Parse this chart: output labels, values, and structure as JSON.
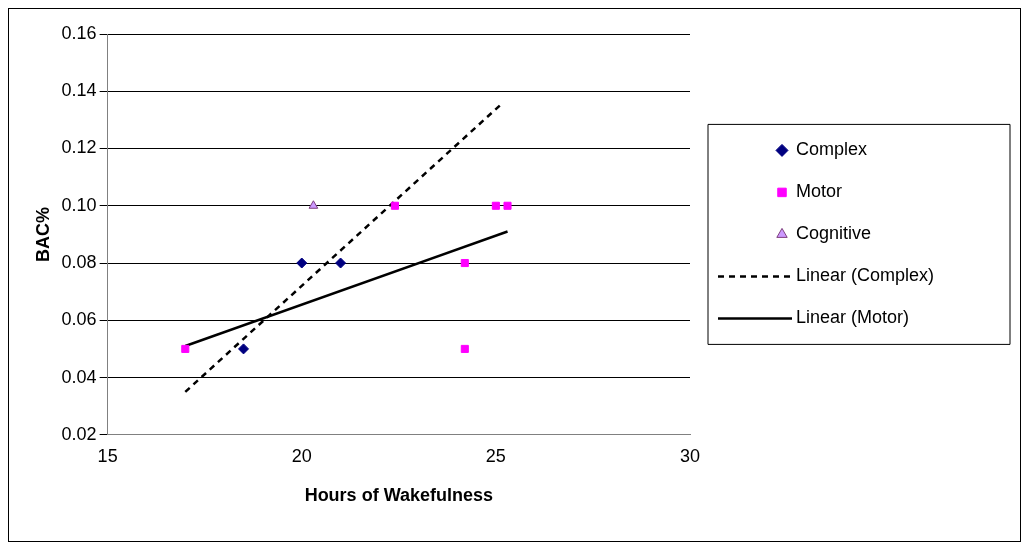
{
  "chart_data": {
    "type": "scatter",
    "xlabel": "Hours of Wakefulness",
    "ylabel": "BAC%",
    "xlim": [
      15,
      30
    ],
    "xticks": [
      15,
      20,
      25,
      30
    ],
    "ylim": [
      0.02,
      0.16
    ],
    "yticks": [
      {
        "value": 0.02,
        "label": "0.02"
      },
      {
        "value": 0.04,
        "label": "0.04"
      },
      {
        "value": 0.06,
        "label": "0.06"
      },
      {
        "value": 0.08,
        "label": "0.08"
      },
      {
        "value": 0.1,
        "label": "0.10"
      },
      {
        "value": 0.12,
        "label": "0.12"
      },
      {
        "value": 0.14,
        "label": "0.14"
      },
      {
        "value": 0.16,
        "label": "0.16"
      }
    ],
    "grid": "y",
    "legend": "right",
    "series": [
      {
        "name": "Complex",
        "type": "scatter",
        "marker": "diamond",
        "color": "#000080",
        "x": [
          20,
          21,
          18.5
        ],
        "values": [
          0.08,
          0.08,
          0.05
        ]
      },
      {
        "name": "Motor",
        "type": "scatter",
        "marker": "square",
        "color": "#ff00ff",
        "x": [
          17,
          22.4,
          24.2,
          24.2,
          25,
          25.3
        ],
        "values": [
          0.05,
          0.1,
          0.08,
          0.05,
          0.1,
          0.1
        ]
      },
      {
        "name": "Cognitive",
        "type": "scatter",
        "marker": "triangle",
        "color": "#cc99ff",
        "x": [
          20.3
        ],
        "values": [
          0.1
        ]
      },
      {
        "name": "Linear (Complex)",
        "type": "line",
        "marker": "none",
        "line_style": "dashed",
        "color": "#000000",
        "x": [
          17,
          25.1
        ],
        "values": [
          0.035,
          0.135
        ]
      },
      {
        "name": "Linear (Motor)",
        "type": "line",
        "marker": "none",
        "line_style": "solid",
        "color": "#000000",
        "x": [
          17,
          25.3
        ],
        "values": [
          0.051,
          0.091
        ]
      }
    ]
  }
}
